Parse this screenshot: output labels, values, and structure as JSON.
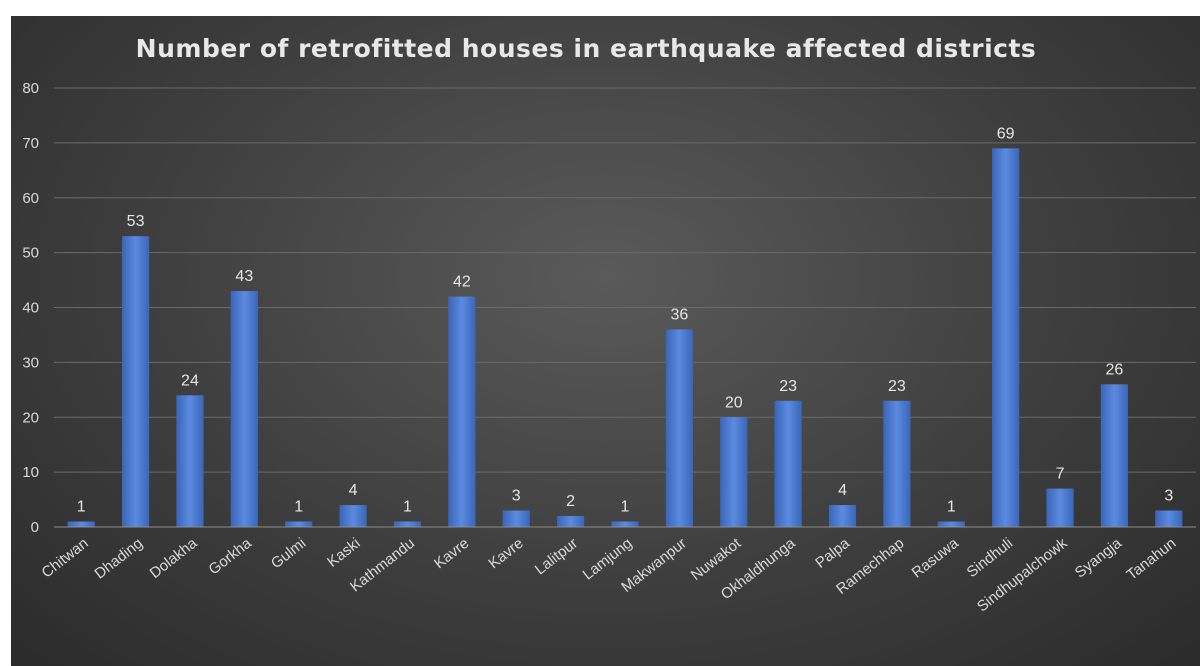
{
  "chart_data": {
    "type": "bar",
    "title": "Number of retrofitted houses in earthquake affected districts",
    "xlabel": "",
    "ylabel": "",
    "ylim": [
      0,
      80
    ],
    "yticks": [
      0,
      10,
      20,
      30,
      40,
      50,
      60,
      70,
      80
    ],
    "grid": true,
    "legend": "none",
    "bar_color": "#4472c4",
    "categories": [
      "Chitwan",
      "Dhading",
      "Dolakha",
      "Gorkha",
      "Gulmi",
      "Kaski",
      "Kathmandu",
      "Kavre",
      "Kavre",
      "Lalitpur",
      "Lamjung",
      "Makwanpur",
      "Nuwakot",
      "Okhaldhunga",
      "Palpa",
      "Ramechhap",
      "Rasuwa",
      "Sindhuli",
      "Sindhupalchowk",
      "Syangja",
      "Tanahun"
    ],
    "values": [
      1,
      53,
      24,
      43,
      1,
      4,
      1,
      42,
      3,
      2,
      1,
      36,
      20,
      23,
      4,
      23,
      1,
      69,
      7,
      26,
      3
    ]
  }
}
